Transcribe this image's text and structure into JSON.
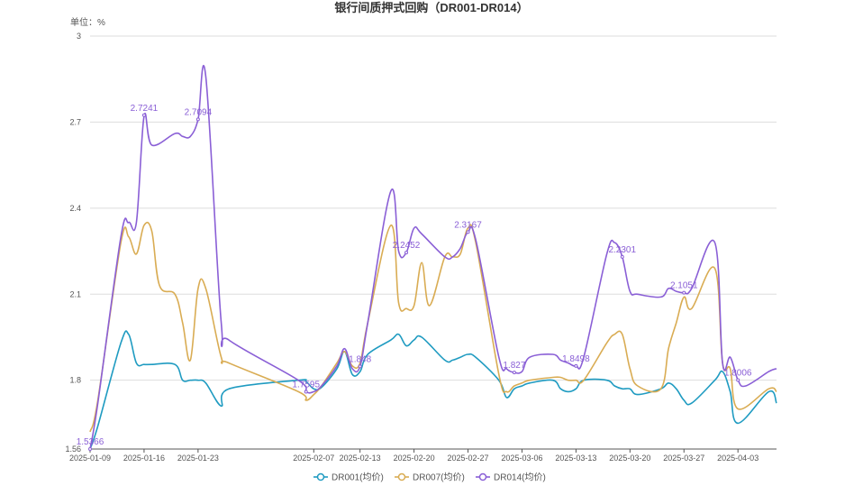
{
  "chart_data": {
    "type": "line",
    "title": "银行间质押式回购（DR001-DR014）",
    "unit_label": "单位：%",
    "ylim": [
      1.56,
      3.0
    ],
    "y_ticks": [
      "1.56",
      "1.8",
      "2.1",
      "2.4",
      "2.7",
      "3"
    ],
    "y_tick_values": [
      1.56,
      1.8,
      2.1,
      2.4,
      2.7,
      3.0
    ],
    "x_range": [
      "2025-01-09",
      "2025-04-08"
    ],
    "x_ticks": [
      "2025-01-09",
      "2025-01-16",
      "2025-01-23",
      "2025-02-07",
      "2025-02-13",
      "2025-02-20",
      "2025-02-27",
      "2025-03-06",
      "2025-03-13",
      "2025-03-20",
      "2025-03-27",
      "2025-04-03"
    ],
    "grid": true,
    "legend_position": "bottom",
    "series": [
      {
        "name": "DR001(均价)",
        "color": "#1f9bc1",
        "points": [
          [
            "2025-01-09",
            1.56
          ],
          [
            "2025-01-10",
            1.64
          ],
          [
            "2025-01-13",
            1.93
          ],
          [
            "2025-01-14",
            1.96
          ],
          [
            "2025-01-15",
            1.86
          ],
          [
            "2025-01-16",
            1.855
          ],
          [
            "2025-01-17",
            1.855
          ],
          [
            "2025-01-20",
            1.855
          ],
          [
            "2025-01-21",
            1.8
          ],
          [
            "2025-01-22",
            1.8
          ],
          [
            "2025-01-23",
            1.8
          ],
          [
            "2025-01-24",
            1.79
          ],
          [
            "2025-01-26",
            1.71
          ],
          [
            "2025-01-27",
            1.77
          ],
          [
            "2025-02-05",
            1.8
          ],
          [
            "2025-02-06",
            1.795
          ],
          [
            "2025-02-07",
            1.77
          ],
          [
            "2025-02-08",
            1.775
          ],
          [
            "2025-02-10",
            1.84
          ],
          [
            "2025-02-11",
            1.9
          ],
          [
            "2025-02-12",
            1.82
          ],
          [
            "2025-02-13",
            1.83
          ],
          [
            "2025-02-14",
            1.89
          ],
          [
            "2025-02-17",
            1.94
          ],
          [
            "2025-02-18",
            1.96
          ],
          [
            "2025-02-19",
            1.92
          ],
          [
            "2025-02-20",
            1.94
          ],
          [
            "2025-02-21",
            1.95
          ],
          [
            "2025-02-24",
            1.87
          ],
          [
            "2025-02-25",
            1.87
          ],
          [
            "2025-02-26",
            1.88
          ],
          [
            "2025-02-27",
            1.89
          ],
          [
            "2025-02-28",
            1.88
          ],
          [
            "2025-03-03",
            1.8
          ],
          [
            "2025-03-04",
            1.74
          ],
          [
            "2025-03-05",
            1.77
          ],
          [
            "2025-03-06",
            1.78
          ],
          [
            "2025-03-07",
            1.79
          ],
          [
            "2025-03-10",
            1.8
          ],
          [
            "2025-03-11",
            1.77
          ],
          [
            "2025-03-12",
            1.76
          ],
          [
            "2025-03-13",
            1.77
          ],
          [
            "2025-03-14",
            1.8
          ],
          [
            "2025-03-17",
            1.8
          ],
          [
            "2025-03-18",
            1.78
          ],
          [
            "2025-03-19",
            1.77
          ],
          [
            "2025-03-20",
            1.77
          ],
          [
            "2025-03-21",
            1.75
          ],
          [
            "2025-03-24",
            1.77
          ],
          [
            "2025-03-25",
            1.79
          ],
          [
            "2025-03-26",
            1.77
          ],
          [
            "2025-03-27",
            1.73
          ],
          [
            "2025-03-28",
            1.72
          ],
          [
            "2025-03-31",
            1.8
          ],
          [
            "2025-04-01",
            1.83
          ],
          [
            "2025-04-02",
            1.76
          ],
          [
            "2025-04-03",
            1.65
          ],
          [
            "2025-04-07",
            1.76
          ],
          [
            "2025-04-08",
            1.72
          ]
        ]
      },
      {
        "name": "DR007(均价)",
        "color": "#d9ac53",
        "points": [
          [
            "2025-01-09",
            1.62
          ],
          [
            "2025-01-10",
            1.73
          ],
          [
            "2025-01-13",
            2.28
          ],
          [
            "2025-01-14",
            2.3
          ],
          [
            "2025-01-15",
            2.24
          ],
          [
            "2025-01-16",
            2.34
          ],
          [
            "2025-01-17",
            2.32
          ],
          [
            "2025-01-18",
            2.13
          ],
          [
            "2025-01-20",
            2.1
          ],
          [
            "2025-01-21",
            2.0
          ],
          [
            "2025-01-22",
            1.87
          ],
          [
            "2025-01-23",
            2.12
          ],
          [
            "2025-01-24",
            2.12
          ],
          [
            "2025-01-26",
            1.88
          ],
          [
            "2025-01-27",
            1.86
          ],
          [
            "2025-02-05",
            1.76
          ],
          [
            "2025-02-06",
            1.73
          ],
          [
            "2025-02-07",
            1.75
          ],
          [
            "2025-02-08",
            1.78
          ],
          [
            "2025-02-10",
            1.86
          ],
          [
            "2025-02-11",
            1.9
          ],
          [
            "2025-02-12",
            1.85
          ],
          [
            "2025-02-13",
            1.86
          ],
          [
            "2025-02-14",
            2.0
          ],
          [
            "2025-02-17",
            2.34
          ],
          [
            "2025-02-18",
            2.07
          ],
          [
            "2025-02-19",
            2.05
          ],
          [
            "2025-02-20",
            2.06
          ],
          [
            "2025-02-21",
            2.21
          ],
          [
            "2025-02-22",
            2.06
          ],
          [
            "2025-02-24",
            2.23
          ],
          [
            "2025-02-25",
            2.23
          ],
          [
            "2025-02-26",
            2.24
          ],
          [
            "2025-02-27",
            2.33
          ],
          [
            "2025-02-28",
            2.28
          ],
          [
            "2025-03-03",
            1.82
          ],
          [
            "2025-03-04",
            1.76
          ],
          [
            "2025-03-05",
            1.78
          ],
          [
            "2025-03-06",
            1.79
          ],
          [
            "2025-03-07",
            1.8
          ],
          [
            "2025-03-10",
            1.81
          ],
          [
            "2025-03-11",
            1.81
          ],
          [
            "2025-03-12",
            1.8
          ],
          [
            "2025-03-13",
            1.8
          ],
          [
            "2025-03-14",
            1.8
          ],
          [
            "2025-03-17",
            1.93
          ],
          [
            "2025-03-18",
            1.96
          ],
          [
            "2025-03-19",
            1.96
          ],
          [
            "2025-03-20",
            1.84
          ],
          [
            "2025-03-21",
            1.78
          ],
          [
            "2025-03-24",
            1.77
          ],
          [
            "2025-03-25",
            1.91
          ],
          [
            "2025-03-26",
            2.0
          ],
          [
            "2025-03-27",
            2.09
          ],
          [
            "2025-03-28",
            2.05
          ],
          [
            "2025-03-31",
            2.19
          ],
          [
            "2025-04-01",
            1.86
          ],
          [
            "2025-04-02",
            1.84
          ],
          [
            "2025-04-03",
            1.7
          ],
          [
            "2025-04-07",
            1.77
          ],
          [
            "2025-04-08",
            1.76
          ]
        ]
      },
      {
        "name": "DR014(均价)",
        "color": "#8a5fd6",
        "points": [
          [
            "2025-01-09",
            1.5366
          ],
          [
            "2025-01-10",
            1.72
          ],
          [
            "2025-01-13",
            2.3
          ],
          [
            "2025-01-14",
            2.35
          ],
          [
            "2025-01-15",
            2.35
          ],
          [
            "2025-01-16",
            2.72
          ],
          [
            "2025-01-17",
            2.62
          ],
          [
            "2025-01-20",
            2.66
          ],
          [
            "2025-01-21",
            2.65
          ],
          [
            "2025-01-22",
            2.65
          ],
          [
            "2025-01-23",
            2.7094
          ],
          [
            "2025-01-24",
            2.86
          ],
          [
            "2025-01-26",
            2.0
          ],
          [
            "2025-01-27",
            1.94
          ],
          [
            "2025-02-05",
            1.8
          ],
          [
            "2025-02-06",
            1.7595
          ],
          [
            "2025-02-07",
            1.76
          ],
          [
            "2025-02-08",
            1.78
          ],
          [
            "2025-02-10",
            1.85
          ],
          [
            "2025-02-11",
            1.91
          ],
          [
            "2025-02-12",
            1.84
          ],
          [
            "2025-02-13",
            1.848
          ],
          [
            "2025-02-14",
            2.0
          ],
          [
            "2025-02-17",
            2.46
          ],
          [
            "2025-02-18",
            2.25
          ],
          [
            "2025-02-19",
            2.2452
          ],
          [
            "2025-02-20",
            2.33
          ],
          [
            "2025-02-21",
            2.31
          ],
          [
            "2025-02-24",
            2.23
          ],
          [
            "2025-02-25",
            2.23
          ],
          [
            "2025-02-26",
            2.26
          ],
          [
            "2025-02-27",
            2.3167
          ],
          [
            "2025-02-28",
            2.29
          ],
          [
            "2025-03-03",
            1.88
          ],
          [
            "2025-03-04",
            1.84
          ],
          [
            "2025-03-05",
            1.827
          ],
          [
            "2025-03-06",
            1.83
          ],
          [
            "2025-03-07",
            1.88
          ],
          [
            "2025-03-10",
            1.89
          ],
          [
            "2025-03-11",
            1.87
          ],
          [
            "2025-03-12",
            1.86
          ],
          [
            "2025-03-13",
            1.8498
          ],
          [
            "2025-03-14",
            1.88
          ],
          [
            "2025-03-17",
            2.24
          ],
          [
            "2025-03-18",
            2.28
          ],
          [
            "2025-03-19",
            2.2301
          ],
          [
            "2025-03-20",
            2.11
          ],
          [
            "2025-03-21",
            2.1
          ],
          [
            "2025-03-24",
            2.09
          ],
          [
            "2025-03-25",
            2.12
          ],
          [
            "2025-03-26",
            2.11
          ],
          [
            "2025-03-27",
            2.1051
          ],
          [
            "2025-03-28",
            2.12
          ],
          [
            "2025-03-31",
            2.28
          ],
          [
            "2025-04-01",
            1.86
          ],
          [
            "2025-04-02",
            1.88
          ],
          [
            "2025-04-03",
            1.8006
          ],
          [
            "2025-04-04",
            1.78
          ],
          [
            "2025-04-07",
            1.83
          ],
          [
            "2025-04-08",
            1.84
          ]
        ]
      }
    ],
    "annotations": [
      {
        "series": 2,
        "x": "2025-01-09",
        "y": 1.5366,
        "text": "1.5366"
      },
      {
        "series": 2,
        "x": "2025-01-16",
        "y": 2.7241,
        "text": "2.7241"
      },
      {
        "series": 2,
        "x": "2025-01-23",
        "y": 2.7094,
        "text": "2.7094"
      },
      {
        "series": 2,
        "x": "2025-02-06",
        "y": 1.7595,
        "text": "1.7595"
      },
      {
        "series": 2,
        "x": "2025-02-13",
        "y": 1.848,
        "text": "1.848"
      },
      {
        "series": 2,
        "x": "2025-02-19",
        "y": 2.2452,
        "text": "2.2452"
      },
      {
        "series": 2,
        "x": "2025-02-27",
        "y": 2.3167,
        "text": "2.3167"
      },
      {
        "series": 2,
        "x": "2025-03-05",
        "y": 1.827,
        "text": "1.827"
      },
      {
        "series": 2,
        "x": "2025-03-13",
        "y": 1.8498,
        "text": "1.8498"
      },
      {
        "series": 2,
        "x": "2025-03-19",
        "y": 2.2301,
        "text": "2.2301"
      },
      {
        "series": 2,
        "x": "2025-03-27",
        "y": 2.1051,
        "text": "2.1051"
      },
      {
        "series": 2,
        "x": "2025-04-03",
        "y": 1.8006,
        "text": "1.8006"
      }
    ]
  }
}
